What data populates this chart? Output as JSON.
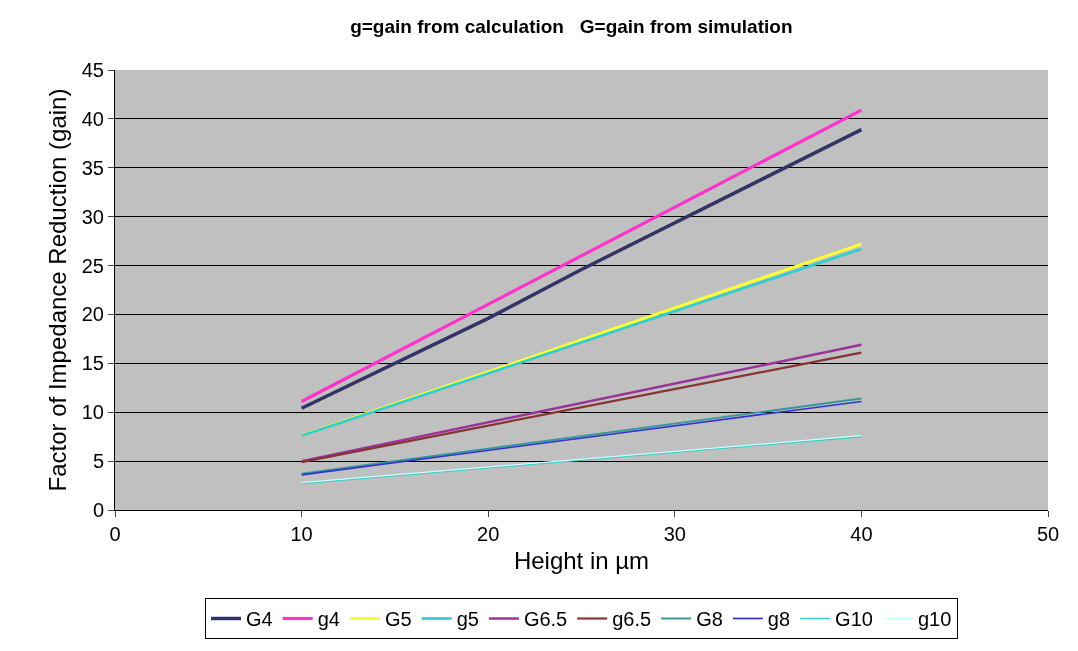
{
  "chart_data": {
    "type": "line",
    "title": "g=gain from calculation   G=gain from simulation",
    "xlabel": "Height in µm",
    "ylabel": "Factor of Impedance Reduction (gain)",
    "xlim": [
      0,
      50
    ],
    "xticks": [
      0,
      10,
      20,
      30,
      40,
      50
    ],
    "ylim": [
      0,
      45
    ],
    "yticks": [
      0,
      5,
      10,
      15,
      20,
      25,
      30,
      35,
      40,
      45
    ],
    "grid": "y",
    "legend": "bottom",
    "marker": "none",
    "line_style": "solid",
    "series": [
      {
        "name": "G4",
        "color": "#333366",
        "x": [
          10,
          20,
          25,
          40
        ],
        "values": [
          10.4,
          19.6,
          24.6,
          38.9
        ]
      },
      {
        "name": "g4",
        "color": "#ff33cc",
        "x": [
          10,
          40
        ],
        "values": [
          11.1,
          40.9
        ]
      },
      {
        "name": "G5",
        "color": "#ffff33",
        "x": [
          10,
          40
        ],
        "values": [
          7.6,
          27.2
        ]
      },
      {
        "name": "g5",
        "color": "#33cccc",
        "x": [
          10,
          40
        ],
        "values": [
          7.6,
          26.7
        ]
      },
      {
        "name": "G6.5",
        "color": "#993399",
        "x": [
          10,
          40
        ],
        "values": [
          5.0,
          16.9
        ]
      },
      {
        "name": "g6.5",
        "color": "#883333",
        "x": [
          10,
          40
        ],
        "values": [
          4.9,
          16.1
        ]
      },
      {
        "name": "G8",
        "color": "#339999",
        "x": [
          10,
          40
        ],
        "values": [
          3.7,
          11.4
        ]
      },
      {
        "name": "g8",
        "color": "#3333cc",
        "x": [
          10,
          40
        ],
        "values": [
          3.6,
          11.1
        ]
      },
      {
        "name": "G10",
        "color": "#33cccc",
        "x": [
          10,
          40
        ],
        "values": [
          2.7,
          7.5
        ]
      },
      {
        "name": "g10",
        "color": "#ccffff",
        "x": [
          10,
          40
        ],
        "values": [
          2.8,
          7.6
        ]
      }
    ]
  }
}
